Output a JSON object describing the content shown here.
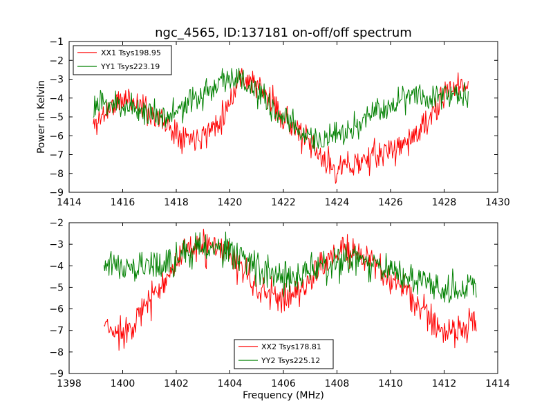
{
  "chart_data": [
    {
      "type": "line",
      "title": "ngc_4565, ID:137181 on-off/off spectrum",
      "ylabel": "Power in Kelvin",
      "xlabel": "",
      "xlim": [
        1414,
        1430
      ],
      "ylim": [
        -9,
        -1
      ],
      "x_ticks": [
        1414,
        1416,
        1418,
        1420,
        1422,
        1424,
        1426,
        1428,
        1430
      ],
      "y_ticks": [
        -9,
        -8,
        -7,
        -6,
        -5,
        -4,
        -3,
        -2,
        -1
      ],
      "grid": false,
      "legend_position": "upper-left",
      "series": [
        {
          "name": "XX1 Tsys198.95",
          "color": "#ff0000",
          "x_range": [
            1414.9,
            1428.9
          ],
          "x": [
            1414.9,
            1415.5,
            1416.2,
            1417.0,
            1417.8,
            1418.5,
            1419.2,
            1419.8,
            1420.4,
            1421.0,
            1421.6,
            1422.2,
            1422.8,
            1423.4,
            1424.0,
            1424.6,
            1425.2,
            1425.8,
            1426.4,
            1427.0,
            1427.6,
            1428.2,
            1428.9
          ],
          "values": [
            -5.5,
            -4.5,
            -4.0,
            -4.7,
            -5.6,
            -6.1,
            -5.8,
            -4.8,
            -2.8,
            -3.3,
            -4.3,
            -5.3,
            -6.2,
            -7.2,
            -7.8,
            -7.5,
            -7.2,
            -6.9,
            -6.5,
            -5.9,
            -4.9,
            -3.5,
            -3.3
          ]
        },
        {
          "name": "YY1 Tsys223.19",
          "color": "#008000",
          "x_range": [
            1414.9,
            1428.9
          ],
          "x": [
            1414.9,
            1415.5,
            1416.2,
            1417.0,
            1417.8,
            1418.5,
            1419.2,
            1419.8,
            1420.4,
            1421.0,
            1421.6,
            1422.2,
            1422.8,
            1423.4,
            1424.0,
            1424.6,
            1425.2,
            1425.8,
            1426.4,
            1427.0,
            1427.6,
            1428.2,
            1428.9
          ],
          "values": [
            -4.5,
            -4.3,
            -4.4,
            -4.8,
            -4.9,
            -4.3,
            -3.6,
            -2.9,
            -3.0,
            -3.8,
            -4.6,
            -5.3,
            -5.9,
            -6.3,
            -6.1,
            -5.6,
            -5.0,
            -4.5,
            -4.0,
            -3.7,
            -3.9,
            -3.8,
            -3.9
          ]
        }
      ]
    },
    {
      "type": "line",
      "title": "",
      "xlabel": "Frequency (MHz)",
      "ylabel": "",
      "xlim": [
        1398,
        1414
      ],
      "ylim": [
        -9,
        -2
      ],
      "x_ticks": [
        1398,
        1400,
        1402,
        1404,
        1406,
        1408,
        1410,
        1412,
        1414
      ],
      "y_ticks": [
        -9,
        -8,
        -7,
        -6,
        -5,
        -4,
        -3,
        -2
      ],
      "grid": false,
      "legend_position": "lower-center",
      "series": [
        {
          "name": "XX2 Tsys178.81",
          "color": "#ff0000",
          "x_range": [
            1399.3,
            1413.2
          ],
          "x": [
            1399.3,
            1399.8,
            1400.4,
            1401.0,
            1401.6,
            1402.2,
            1402.8,
            1403.4,
            1404.0,
            1404.6,
            1405.2,
            1405.8,
            1406.4,
            1407.0,
            1407.6,
            1408.2,
            1408.8,
            1409.4,
            1410.0,
            1410.6,
            1411.2,
            1411.8,
            1412.4,
            1413.2
          ],
          "values": [
            -6.8,
            -7.2,
            -6.6,
            -5.7,
            -4.5,
            -3.6,
            -3.1,
            -3.2,
            -3.5,
            -4.4,
            -5.2,
            -5.5,
            -5.4,
            -4.6,
            -3.7,
            -3.3,
            -3.5,
            -3.9,
            -4.6,
            -5.2,
            -6.1,
            -6.8,
            -7.2,
            -6.5
          ]
        },
        {
          "name": "YY2 Tsys225.12",
          "color": "#008000",
          "x_range": [
            1399.3,
            1413.2
          ],
          "x": [
            1399.3,
            1399.8,
            1400.4,
            1401.0,
            1401.6,
            1402.2,
            1402.8,
            1403.4,
            1404.0,
            1404.6,
            1405.2,
            1405.8,
            1406.4,
            1407.0,
            1407.6,
            1408.2,
            1408.8,
            1409.4,
            1410.0,
            1410.6,
            1411.2,
            1411.8,
            1412.4,
            1413.2
          ],
          "values": [
            -3.8,
            -3.9,
            -4.1,
            -4.0,
            -3.8,
            -3.6,
            -3.3,
            -3.2,
            -3.3,
            -3.7,
            -4.2,
            -4.5,
            -4.6,
            -4.3,
            -4.0,
            -3.8,
            -3.8,
            -4.0,
            -4.2,
            -4.4,
            -4.7,
            -5.0,
            -5.2,
            -4.6
          ]
        }
      ]
    }
  ]
}
